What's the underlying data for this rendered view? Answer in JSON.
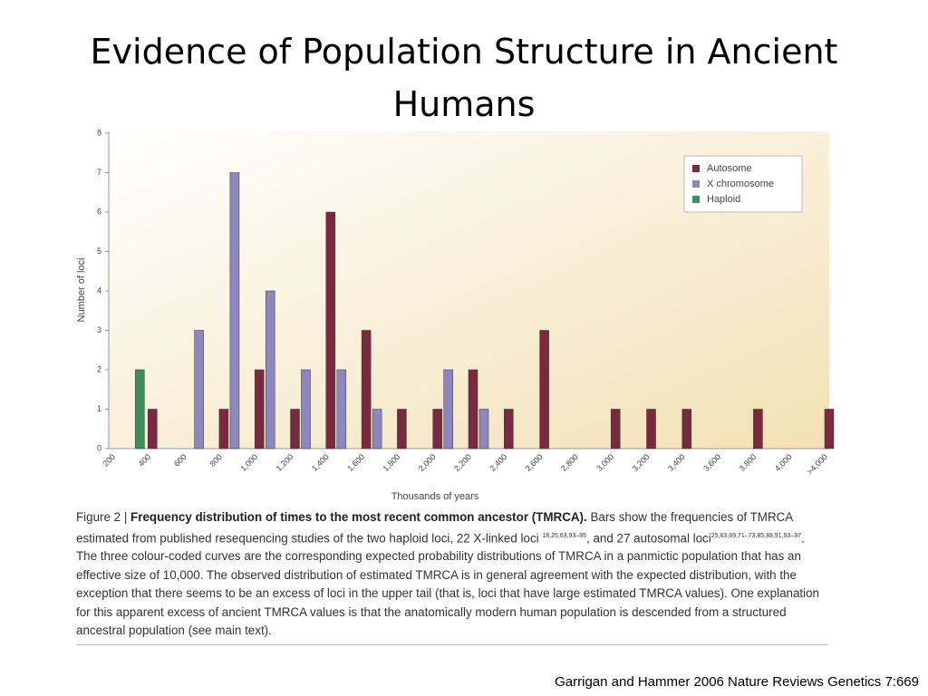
{
  "title": "Evidence of Population Structure in Ancient Humans",
  "chart_data": {
    "type": "bar",
    "categories": [
      "200",
      "400",
      "600",
      "800",
      "1,000",
      "1,200",
      "1,400",
      "1,600",
      "1,800",
      "2,000",
      "2,200",
      "2,400",
      "2,600",
      "2,800",
      "3,000",
      "3,200",
      "3,400",
      "3,600",
      "3,800",
      "4,000",
      ">4,000"
    ],
    "series": [
      {
        "name": "Autosome",
        "color": "#7a2a3e",
        "values": [
          0,
          1,
          0,
          1,
          2,
          1,
          6,
          3,
          1,
          1,
          2,
          1,
          3,
          0,
          1,
          1,
          1,
          0,
          1,
          0,
          1
        ]
      },
      {
        "name": "X chromosome",
        "color": "#8c88bd",
        "values": [
          0,
          0,
          3,
          7,
          4,
          2,
          2,
          1,
          0,
          2,
          1,
          0,
          0,
          0,
          0,
          0,
          0,
          0,
          0,
          0,
          0
        ]
      },
      {
        "name": "Haploid",
        "color": "#3f8f5e",
        "values": [
          0,
          2,
          0,
          0,
          0,
          0,
          0,
          0,
          0,
          0,
          0,
          0,
          0,
          0,
          0,
          0,
          0,
          0,
          0,
          0,
          0
        ]
      }
    ],
    "ylim": [
      0,
      8
    ],
    "yticks": [
      0,
      1,
      2,
      3,
      4,
      5,
      6,
      7,
      8
    ],
    "y_label": "Number of loci",
    "x_label": "Thousands of years",
    "legend": "upper right"
  },
  "caption": {
    "label": "Figure 2 | ",
    "heading": "Frequency distribution of times to the most recent common ancestor (TMRCA).",
    "text1": " Bars show the frequencies of TMRCA estimated from published resequencing studies of the two haploid loci, 22 X-linked loci ",
    "ref1": "18,25,63,93–95",
    "text2": ", and 27 autosomal loci",
    "ref2": "25,63,69,71–73,85,88,91,93–97",
    "text3": ". The three colour-coded curves are the corresponding expected probability distributions of TMRCA in a panmictic population that has an effective size of 10,000. The observed distribution of estimated TMRCA is in general agreement with the expected distribution, with the exception that there seems to be an excess of loci in the upper tail (that is, loci that have large estimated TMRCA values). One explanation for this apparent excess of ancient TMRCA values is that the anatomically modern human population is descended from a structured ancestral population (see main text)."
  },
  "footer": "Garrigan and Hammer 2006 Nature Reviews Genetics 7:669"
}
